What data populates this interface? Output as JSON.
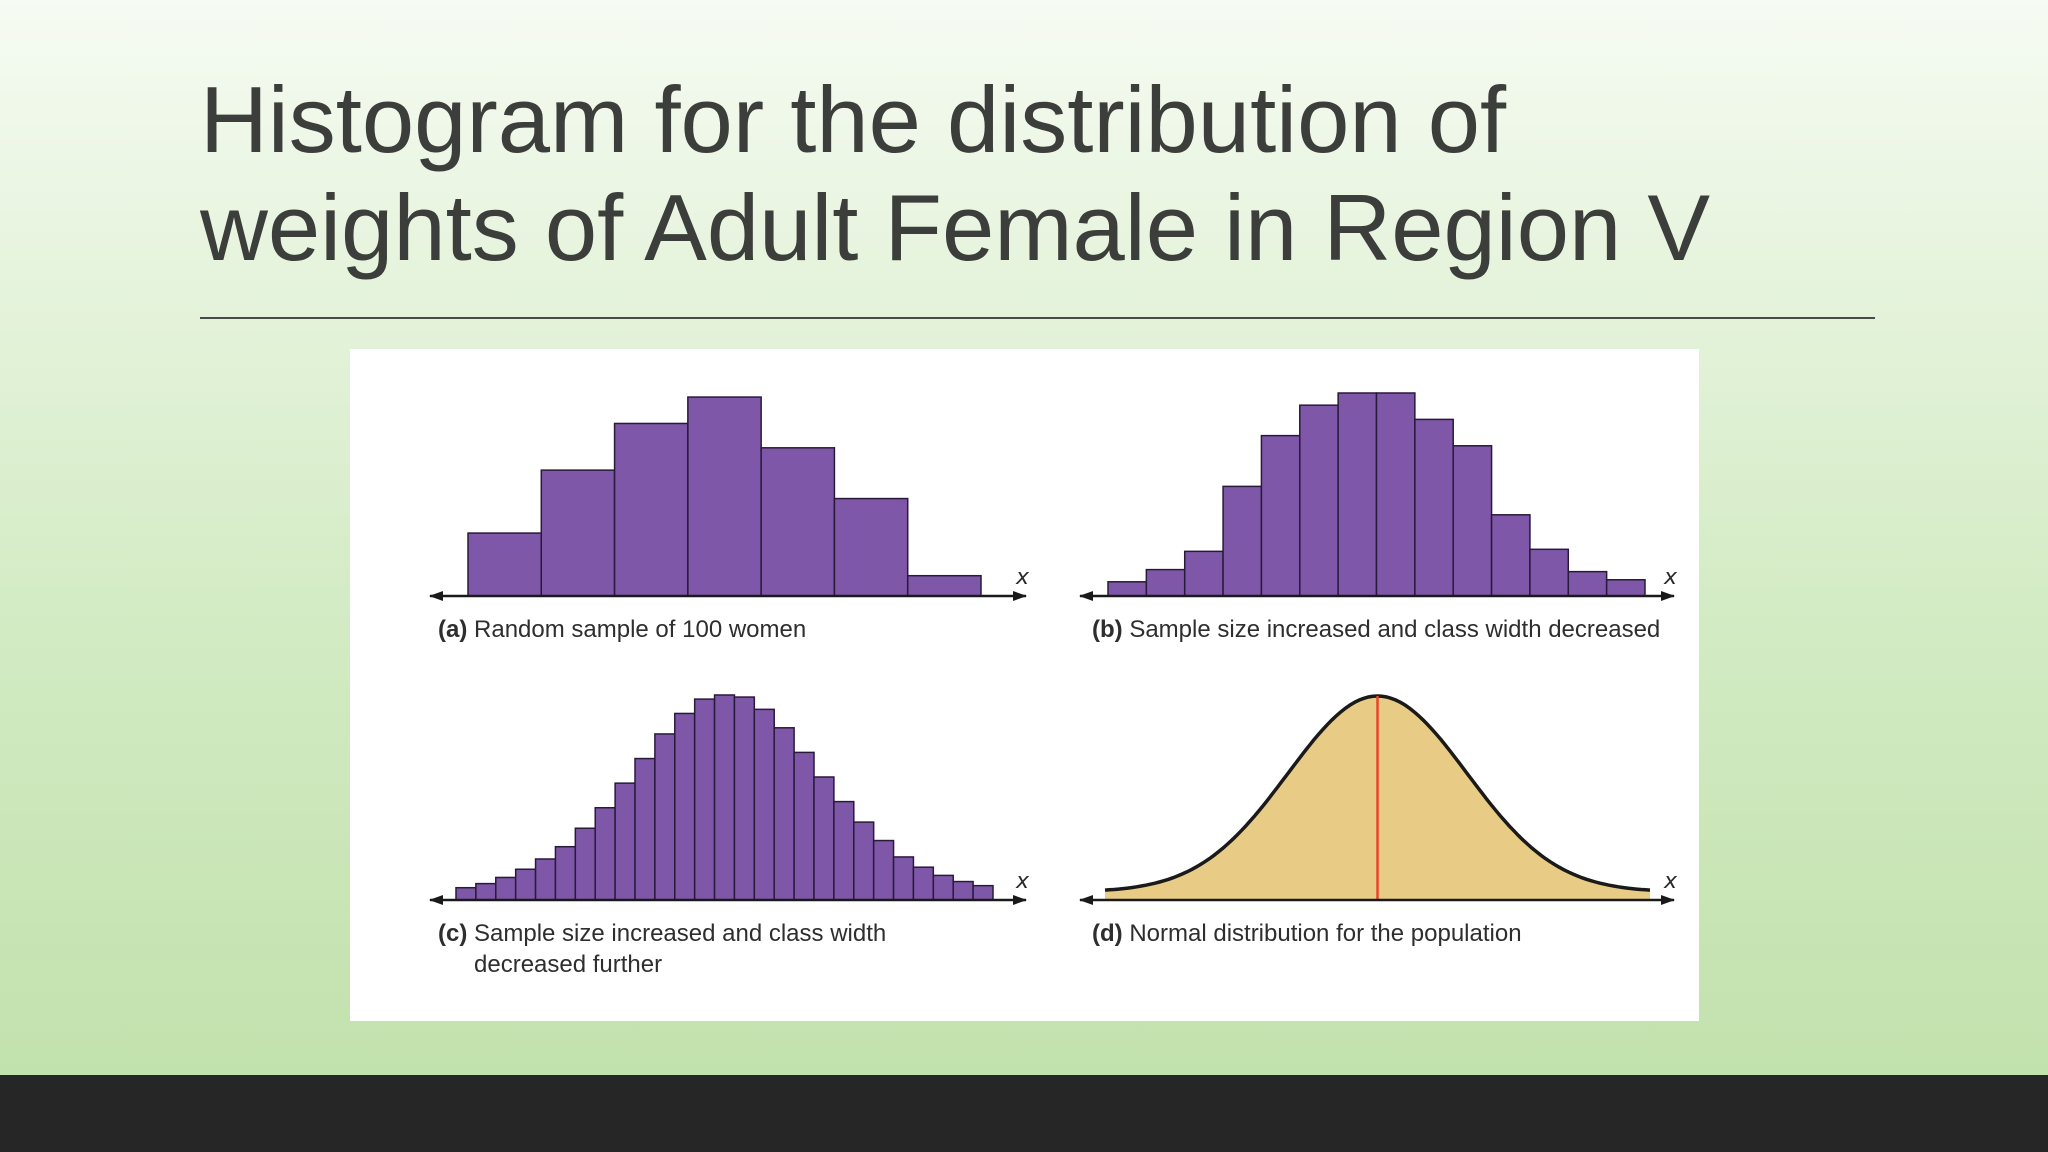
{
  "slide": {
    "title_line1": "Histogram for the distribution of",
    "title_line2": "weights of Adult Female in Region V"
  },
  "colors": {
    "bar_fill": "#7e57a8",
    "bar_stroke": "#2a1a3a",
    "curve_fill": "#e8cb85",
    "curve_stroke": "#1a1a1a",
    "mean_line": "#e8442a"
  },
  "chart_data": [
    {
      "type": "bar",
      "panel": "a",
      "tag": "(a)",
      "caption": "Random sample of 100 women",
      "axis_label": "x",
      "values": [
        0.31,
        0.62,
        0.85,
        0.98,
        0.73,
        0.48,
        0.1
      ]
    },
    {
      "type": "bar",
      "panel": "b",
      "tag": "(b)",
      "caption": "Sample size increased and class width decreased",
      "axis_label": "x",
      "values": [
        0.07,
        0.13,
        0.22,
        0.54,
        0.79,
        0.94,
        1.0,
        1.0,
        0.87,
        0.74,
        0.4,
        0.23,
        0.12,
        0.08
      ]
    },
    {
      "type": "bar",
      "panel": "c",
      "tag": "(c)",
      "caption_line1": "Sample size increased and class width",
      "caption_line2": "decreased further",
      "axis_label": "x",
      "values": [
        0.06,
        0.08,
        0.11,
        0.15,
        0.2,
        0.26,
        0.35,
        0.45,
        0.57,
        0.69,
        0.81,
        0.91,
        0.98,
        1.0,
        0.99,
        0.93,
        0.84,
        0.72,
        0.6,
        0.48,
        0.38,
        0.29,
        0.21,
        0.16,
        0.12,
        0.09,
        0.07
      ]
    },
    {
      "type": "area",
      "panel": "d",
      "tag": "(d)",
      "caption": "Normal distribution for the population",
      "axis_label": "x",
      "distribution": "normal",
      "mean_marked": true
    }
  ]
}
